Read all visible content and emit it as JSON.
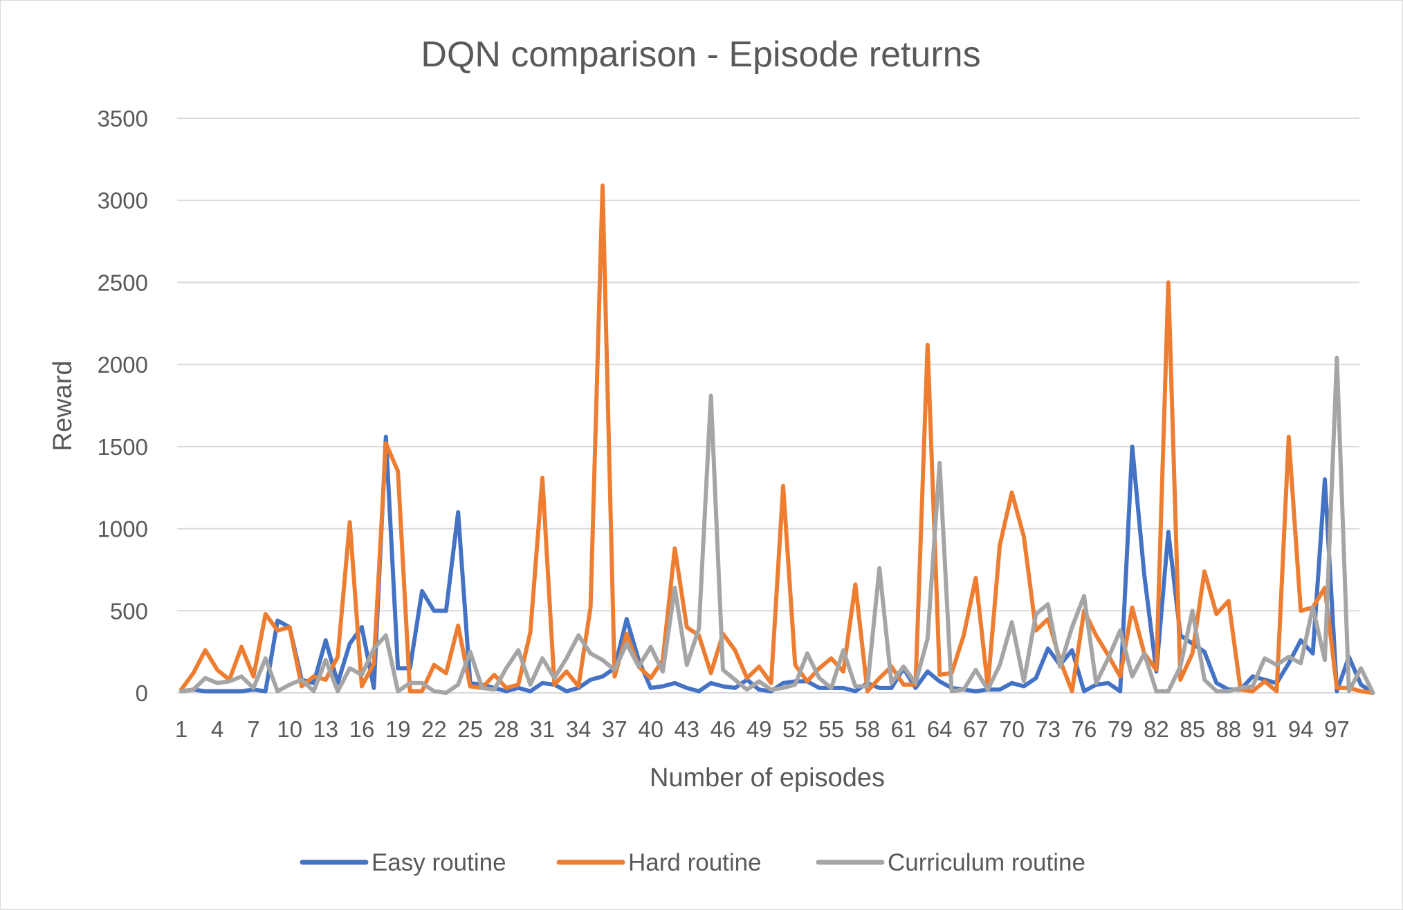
{
  "chart_data": {
    "type": "line",
    "title": "DQN comparison - Episode returns",
    "xlabel": "Number of episodes",
    "ylabel": "Reward",
    "ylim": [
      0,
      3500
    ],
    "yticks": [
      0,
      500,
      1000,
      1500,
      2000,
      2500,
      3000,
      3500
    ],
    "xticks": [
      "1",
      "4",
      "7",
      "10",
      "13",
      "16",
      "19",
      "22",
      "25",
      "28",
      "31",
      "34",
      "37",
      "40",
      "43",
      "46",
      "49",
      "52",
      "55",
      "58",
      "61",
      "64",
      "67",
      "70",
      "73",
      "76",
      "79",
      "82",
      "85",
      "88",
      "91",
      "94",
      "97"
    ],
    "grid": "horizontal",
    "legend_position": "bottom",
    "x": [
      1,
      2,
      3,
      4,
      5,
      6,
      7,
      8,
      9,
      10,
      11,
      12,
      13,
      14,
      15,
      16,
      17,
      18,
      19,
      20,
      21,
      22,
      23,
      24,
      25,
      26,
      27,
      28,
      29,
      30,
      31,
      32,
      33,
      34,
      35,
      36,
      37,
      38,
      39,
      40,
      41,
      42,
      43,
      44,
      45,
      46,
      47,
      48,
      49,
      50,
      51,
      52,
      53,
      54,
      55,
      56,
      57,
      58,
      59,
      60,
      61,
      62,
      63,
      64,
      65,
      66,
      67,
      68,
      69,
      70,
      71,
      72,
      73,
      74,
      75,
      76,
      77,
      78,
      79,
      80,
      81,
      82,
      83,
      84,
      85,
      86,
      87,
      88,
      89,
      90,
      91,
      92,
      93,
      94,
      95,
      96,
      97,
      98,
      99,
      100
    ],
    "series": [
      {
        "name": "Easy routine",
        "color": "#4472c4",
        "values": [
          10,
          20,
          10,
          10,
          10,
          10,
          20,
          10,
          440,
          400,
          80,
          60,
          320,
          60,
          300,
          400,
          30,
          1560,
          150,
          150,
          620,
          500,
          500,
          1100,
          60,
          50,
          30,
          10,
          30,
          10,
          60,
          50,
          10,
          30,
          80,
          100,
          150,
          450,
          200,
          30,
          40,
          60,
          30,
          10,
          60,
          40,
          30,
          80,
          20,
          10,
          60,
          70,
          70,
          30,
          30,
          30,
          10,
          60,
          30,
          30,
          150,
          30,
          130,
          70,
          30,
          20,
          10,
          20,
          20,
          60,
          40,
          90,
          270,
          170,
          260,
          10,
          50,
          60,
          10,
          1500,
          720,
          130,
          980,
          350,
          300,
          250,
          60,
          20,
          20,
          100,
          80,
          60,
          180,
          320,
          240,
          1300,
          10,
          220,
          50,
          0
        ]
      },
      {
        "name": "Hard routine",
        "color": "#ed7d31",
        "values": [
          20,
          120,
          260,
          140,
          80,
          280,
          100,
          480,
          380,
          400,
          40,
          100,
          80,
          220,
          1040,
          40,
          180,
          1520,
          1350,
          10,
          10,
          170,
          120,
          410,
          40,
          30,
          110,
          30,
          50,
          370,
          1310,
          50,
          130,
          40,
          520,
          3090,
          100,
          360,
          160,
          90,
          200,
          880,
          400,
          350,
          120,
          360,
          260,
          90,
          160,
          60,
          1260,
          170,
          70,
          150,
          210,
          130,
          660,
          10,
          90,
          160,
          50,
          50,
          2120,
          110,
          120,
          350,
          700,
          40,
          900,
          1220,
          950,
          380,
          450,
          200,
          10,
          500,
          350,
          230,
          100,
          520,
          240,
          140,
          2500,
          80,
          240,
          740,
          480,
          560,
          20,
          10,
          70,
          10,
          1560,
          500,
          520,
          640,
          30,
          30,
          10,
          0
        ]
      },
      {
        "name": "Curriculum routine",
        "color": "#a5a5a5",
        "values": [
          10,
          20,
          90,
          60,
          70,
          100,
          30,
          210,
          10,
          50,
          80,
          10,
          200,
          10,
          150,
          110,
          270,
          350,
          10,
          60,
          60,
          10,
          0,
          50,
          250,
          30,
          20,
          150,
          260,
          50,
          210,
          90,
          210,
          350,
          240,
          200,
          140,
          300,
          160,
          280,
          130,
          640,
          170,
          390,
          1810,
          140,
          80,
          20,
          70,
          20,
          30,
          50,
          240,
          90,
          30,
          260,
          40,
          40,
          760,
          60,
          160,
          60,
          330,
          1400,
          10,
          20,
          140,
          20,
          170,
          430,
          70,
          480,
          540,
          160,
          400,
          590,
          60,
          210,
          380,
          100,
          240,
          10,
          10,
          160,
          500,
          80,
          10,
          10,
          30,
          40,
          210,
          170,
          220,
          180,
          520,
          200,
          2040,
          10,
          150,
          0
        ]
      }
    ]
  }
}
